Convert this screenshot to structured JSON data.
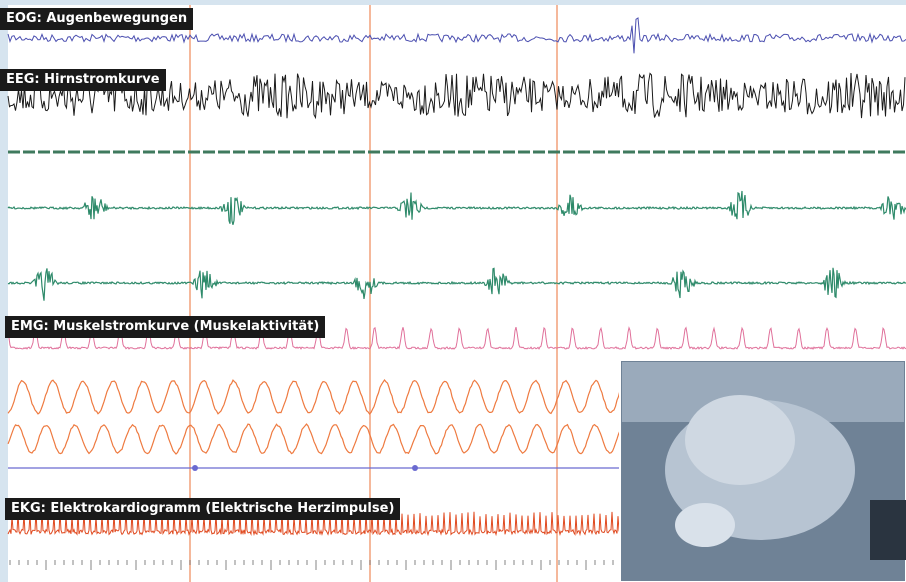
{
  "labels": {
    "eog": "EOG: Augenbewegungen",
    "eeg": "EEG: Hirnstromkurve",
    "emg": "EMG: Muskelstromkurve (Muskelaktivität)",
    "ekg": "EKG: Elektrokardiogramm (Elektrische Herzimpulse)"
  }
}
